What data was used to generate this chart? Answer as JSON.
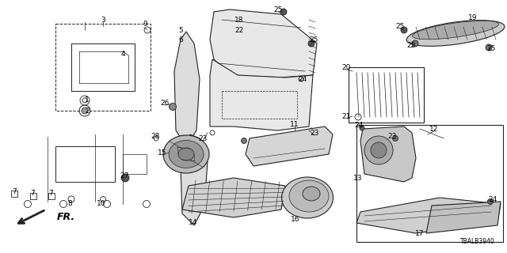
{
  "bg_color": "#ffffff",
  "line_color": "#222222",
  "text_color": "#000000",
  "fig_width": 6.4,
  "fig_height": 3.2,
  "dpi": 100,
  "bottom_label": "TBALB3940",
  "fr_label": "FR."
}
